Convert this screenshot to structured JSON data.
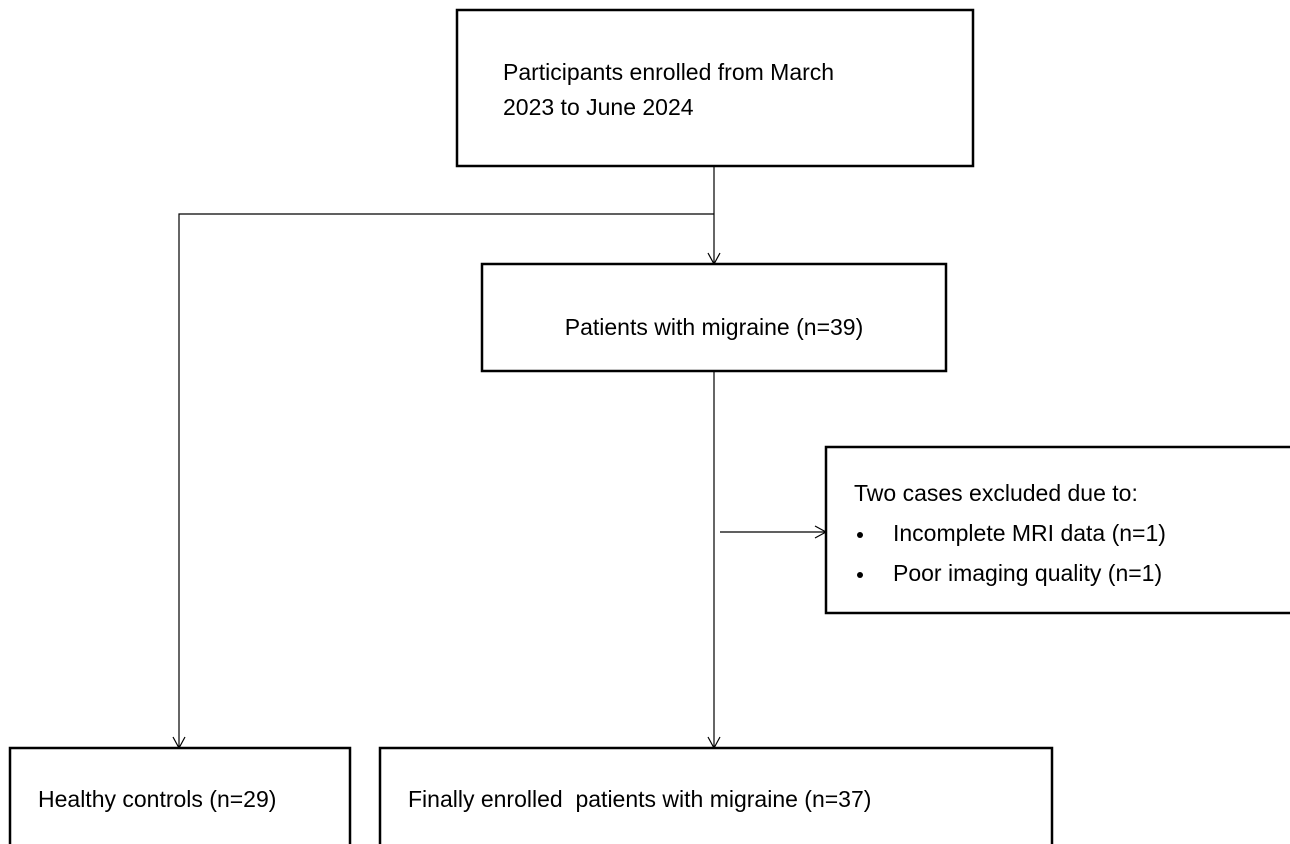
{
  "nodes": [
    {
      "lines": [
        "Participants enrolled from March",
        "2023 to June 2024"
      ]
    },
    {
      "lines": [
        "Patients with migraine (n=39)"
      ]
    },
    {
      "lines": [
        "Two cases excluded due to:"
      ],
      "items": [
        "Incomplete MRI data (n=1)",
        "Poor imaging quality (n=1)"
      ]
    },
    {
      "lines": [
        "Healthy controls (n=29)"
      ]
    },
    {
      "lines": [
        "Finally enrolled  patients with migraine (n=37)"
      ]
    }
  ]
}
